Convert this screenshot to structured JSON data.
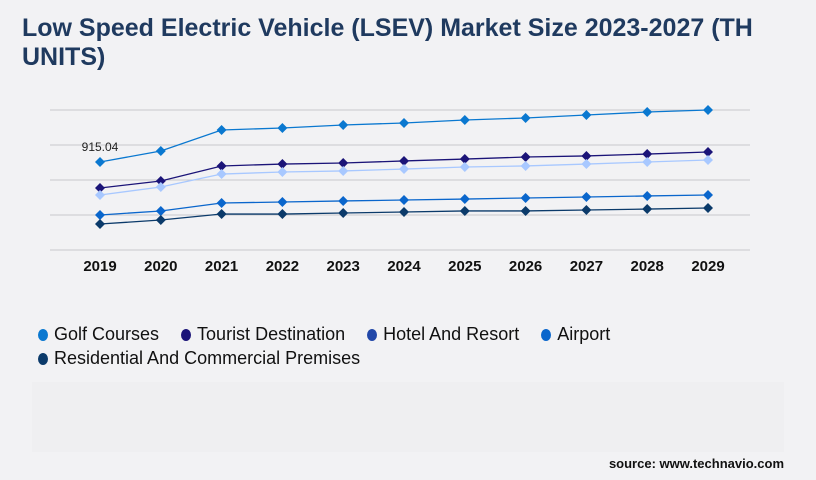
{
  "title": "Low Speed Electric Vehicle (LSEV) Market Size 2023-2027 (TH UNITS)",
  "source": "source: www.technavio.com",
  "chart_data": {
    "type": "line",
    "title": "Low Speed Electric Vehicle (LSEV) Market Size 2023-2027 (TH UNITS)",
    "x": [
      "2019",
      "2020",
      "2021",
      "2022",
      "2023",
      "2024",
      "2025",
      "2026",
      "2027",
      "2028",
      "2029"
    ],
    "ylim": [
      0,
      1456
    ],
    "grid": true,
    "legend_position": "bottom",
    "annotations": [
      {
        "series": "Golf Courses",
        "x": "2019",
        "text": "915.04"
      }
    ],
    "series": [
      {
        "name": "Golf Courses",
        "color": "#0a78d0",
        "legend_color": "#0a78d0",
        "values": [
          915.04,
          1030,
          1248,
          1269,
          1300,
          1321,
          1352,
          1373,
          1404,
          1435,
          1456
        ]
      },
      {
        "name": "Tourist Destination",
        "color": "#1b1478",
        "legend_color": "#1b1478",
        "values": [
          645,
          718,
          874,
          894,
          905,
          926,
          946,
          967,
          978,
          998,
          1019
        ]
      },
      {
        "name": "Hotel And Resort",
        "color": "#a8c8ff",
        "legend_color": "#2147a8",
        "values": [
          572,
          655,
          790,
          811,
          822,
          842,
          863,
          874,
          894,
          915,
          936
        ]
      },
      {
        "name": "Airport",
        "color": "#0a66cc",
        "legend_color": "#0a66cc",
        "values": [
          364,
          406,
          489,
          499,
          510,
          520,
          530,
          541,
          551,
          562,
          572
        ]
      },
      {
        "name": "Residential And Commercial Premises",
        "color": "#0b3a6a",
        "legend_color": "#0b3a6a",
        "values": [
          270,
          312,
          374,
          374,
          385,
          395,
          406,
          406,
          416,
          426,
          437
        ]
      }
    ]
  }
}
